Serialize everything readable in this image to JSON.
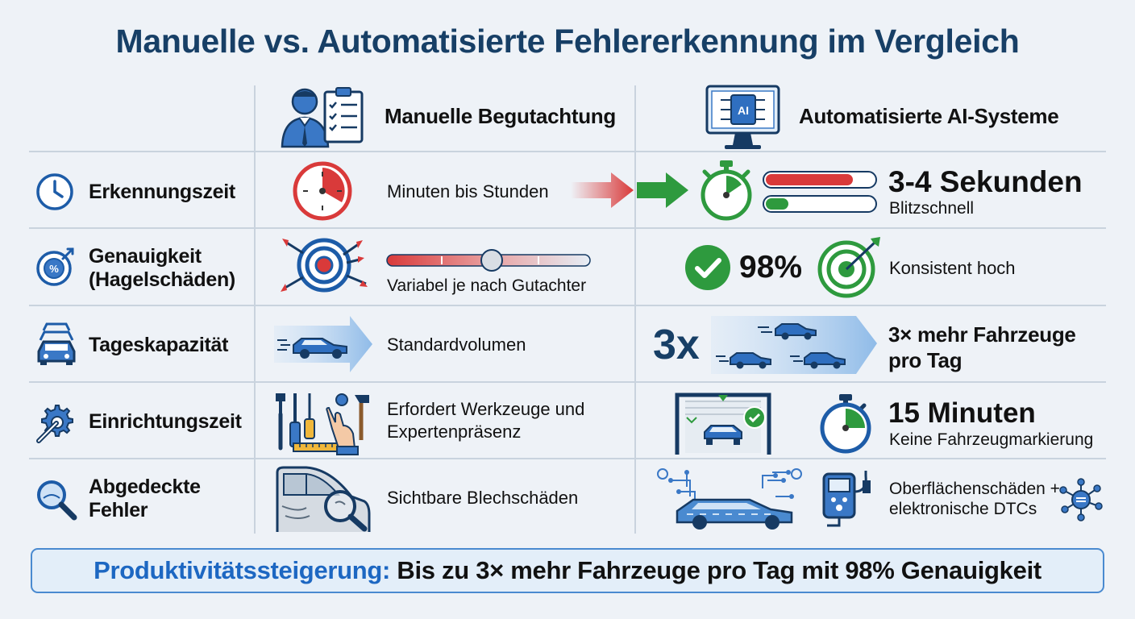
{
  "title": "Manuelle vs. Automatisierte Fehlererkennung im Vergleich",
  "columns": {
    "manual": "Manuelle Begutachtung",
    "ai": "Automatisierte AI-Systeme",
    "ai_chip_label": "AI"
  },
  "rows": [
    {
      "label": "Erkennungszeit",
      "manual": "Minuten bis Stunden",
      "ai_main": "3-4 Sekunden",
      "ai_sub": "Blitzschnell"
    },
    {
      "label": "Genauigkeit (Hagelschäden)",
      "manual": "Variabel je nach Gutachter",
      "ai_main": "98%",
      "ai_sub": "Konsistent hoch"
    },
    {
      "label": "Tageskapazität",
      "manual": "Standardvolumen",
      "ai_main": "3x",
      "ai_sub": "3× mehr Fahrzeuge pro Tag"
    },
    {
      "label": "Einrichtungszeit",
      "manual": "Erfordert Werkzeuge und Expertenpräsenz",
      "ai_main": "15 Minuten",
      "ai_sub": "Keine Fahrzeugmarkierung"
    },
    {
      "label": "Abgedeckte Fehler",
      "manual": "Sichtbare Blechschäden",
      "ai_sub": "Oberflächenschäden + elektronische DTCs"
    }
  ],
  "banner": {
    "lead": "Produktivitätssteigerung:",
    "rest": "Bis zu 3× mehr Fahrzeuge pro Tag mit 98% Genauigkeit"
  },
  "colors": {
    "title": "#173f66",
    "accent_blue": "#1d67c2",
    "green": "#2e9a3e",
    "red": "#d93a3a",
    "grid": "#c9d3de"
  },
  "icons": [
    "inspector-clipboard-icon",
    "ai-monitor-icon",
    "clock-icon",
    "target-percent-icon",
    "cars-stack-icon",
    "gear-wrench-icon",
    "magnifier-icon",
    "red-clock-icon",
    "arrows-icon",
    "green-stopwatch-icon",
    "dart-target-icon",
    "green-check-icon",
    "green-target-icon",
    "car-arrow-icon",
    "tools-icon",
    "scan-gate-icon",
    "stopwatch-icon",
    "car-magnifier-icon",
    "circuit-car-icon",
    "obd-scanner-icon",
    "network-icon"
  ]
}
